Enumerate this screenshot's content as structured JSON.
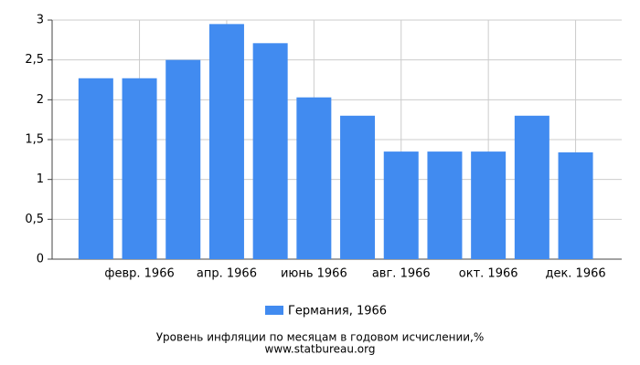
{
  "chart_data": {
    "type": "bar",
    "title": "Уровень инфляции по месяцам в годовом исчислении,%",
    "subtitle": "www.statbureau.org",
    "categories": [
      null,
      "февр. 1966",
      null,
      "апр. 1966",
      null,
      "июнь 1966",
      null,
      "авг. 1966",
      null,
      "окт. 1966",
      null,
      "дек. 1966"
    ],
    "series": [
      {
        "name": "Германия, 1966",
        "color": "#418bf0",
        "values": [
          2.27,
          2.27,
          2.5,
          2.95,
          2.71,
          2.03,
          1.8,
          1.35,
          1.35,
          1.35,
          1.8,
          1.34
        ]
      }
    ],
    "ylim": [
      0,
      3
    ],
    "yticks": [
      0,
      {
        "value": 0.5,
        "label": "0,5"
      },
      1,
      {
        "value": 1.5,
        "label": "1,5"
      },
      2,
      {
        "value": 2.5,
        "label": "2,5"
      },
      3
    ],
    "grid": true
  }
}
